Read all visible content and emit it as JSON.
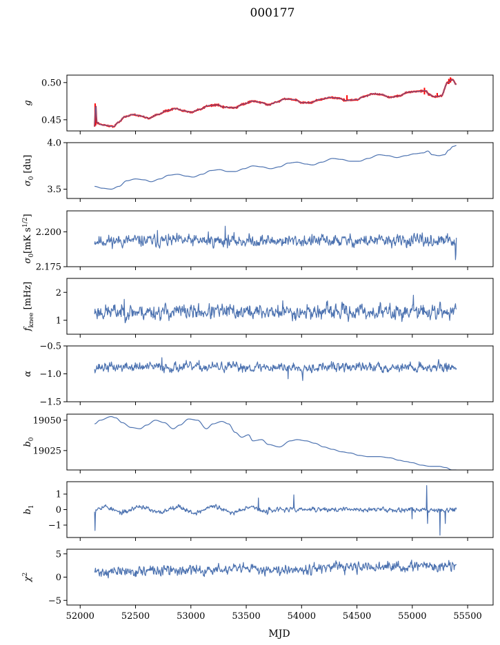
{
  "title": "000177",
  "chart_data": {
    "type": "line",
    "title": "000177",
    "xlabel": "MJD",
    "xlim": [
      51880,
      55730
    ],
    "xticks": [
      52000,
      52500,
      53000,
      53500,
      54000,
      54500,
      55000,
      55500
    ],
    "xtick_labels": [
      "52000",
      "52500",
      "53000",
      "53500",
      "54000",
      "54500",
      "55000",
      "55500"
    ],
    "x_range": [
      52130,
      55400
    ],
    "panels": [
      {
        "key": "g",
        "ylabel": "g",
        "ylim": [
          0.435,
          0.51
        ],
        "yticks": [
          0.45,
          0.5
        ],
        "ytick_labels": [
          "0.45",
          "0.50"
        ],
        "series": [
          {
            "color": "#ff0000",
            "style": "raw"
          },
          {
            "color": "#4c72b0",
            "style": "smooth"
          }
        ],
        "points": [
          [
            52130,
            0.441
          ],
          [
            52140,
            0.47
          ],
          [
            52150,
            0.446
          ],
          [
            52200,
            0.443
          ],
          [
            52300,
            0.441
          ],
          [
            52350,
            0.447
          ],
          [
            52400,
            0.454
          ],
          [
            52480,
            0.457
          ],
          [
            52550,
            0.455
          ],
          [
            52620,
            0.452
          ],
          [
            52700,
            0.457
          ],
          [
            52780,
            0.462
          ],
          [
            52860,
            0.465
          ],
          [
            52940,
            0.462
          ],
          [
            53000,
            0.46
          ],
          [
            53080,
            0.464
          ],
          [
            53160,
            0.469
          ],
          [
            53240,
            0.47
          ],
          [
            53300,
            0.467
          ],
          [
            53400,
            0.466
          ],
          [
            53470,
            0.471
          ],
          [
            53560,
            0.475
          ],
          [
            53640,
            0.473
          ],
          [
            53700,
            0.47
          ],
          [
            53780,
            0.474
          ],
          [
            53850,
            0.478
          ],
          [
            53940,
            0.477
          ],
          [
            54000,
            0.473
          ],
          [
            54080,
            0.473
          ],
          [
            54160,
            0.477
          ],
          [
            54260,
            0.48
          ],
          [
            54330,
            0.479
          ],
          [
            54400,
            0.476
          ],
          [
            54500,
            0.477
          ],
          [
            54560,
            0.481
          ],
          [
            54650,
            0.485
          ],
          [
            54720,
            0.484
          ],
          [
            54800,
            0.48
          ],
          [
            54880,
            0.482
          ],
          [
            54960,
            0.487
          ],
          [
            55040,
            0.488
          ],
          [
            55120,
            0.489
          ],
          [
            55150,
            0.484
          ],
          [
            55200,
            0.481
          ],
          [
            55260,
            0.482
          ],
          [
            55320,
            0.5
          ],
          [
            55360,
            0.504
          ],
          [
            55400,
            0.497
          ]
        ],
        "red_spikes": [
          [
            52135,
            0.445,
            0.472
          ],
          [
            52138,
            0.442,
            0.468
          ],
          [
            52141,
            0.443,
            0.465
          ],
          [
            54410,
            0.476,
            0.483
          ],
          [
            55110,
            0.484,
            0.493
          ],
          [
            55225,
            0.48,
            0.486
          ],
          [
            55330,
            0.498,
            0.505
          ],
          [
            55345,
            0.5,
            0.507
          ]
        ]
      },
      {
        "key": "sigma0",
        "ylabel": "σ0 [du]",
        "ylim": [
          3.4,
          4.0
        ],
        "yticks": [
          3.5,
          4.0
        ],
        "ytick_labels": [
          "3.5",
          "4.0"
        ],
        "series": [
          {
            "color": "#4c72b0"
          }
        ],
        "points": [
          [
            52130,
            3.53
          ],
          [
            52200,
            3.51
          ],
          [
            52280,
            3.5
          ],
          [
            52350,
            3.53
          ],
          [
            52420,
            3.59
          ],
          [
            52500,
            3.61
          ],
          [
            52580,
            3.6
          ],
          [
            52640,
            3.58
          ],
          [
            52720,
            3.61
          ],
          [
            52800,
            3.65
          ],
          [
            52880,
            3.66
          ],
          [
            52960,
            3.64
          ],
          [
            53020,
            3.63
          ],
          [
            53100,
            3.66
          ],
          [
            53180,
            3.7
          ],
          [
            53260,
            3.71
          ],
          [
            53330,
            3.69
          ],
          [
            53400,
            3.69
          ],
          [
            53480,
            3.72
          ],
          [
            53560,
            3.75
          ],
          [
            53640,
            3.74
          ],
          [
            53720,
            3.72
          ],
          [
            53800,
            3.74
          ],
          [
            53880,
            3.78
          ],
          [
            53960,
            3.79
          ],
          [
            54040,
            3.77
          ],
          [
            54100,
            3.76
          ],
          [
            54180,
            3.79
          ],
          [
            54280,
            3.83
          ],
          [
            54360,
            3.82
          ],
          [
            54440,
            3.8
          ],
          [
            54520,
            3.8
          ],
          [
            54600,
            3.83
          ],
          [
            54700,
            3.87
          ],
          [
            54780,
            3.86
          ],
          [
            54860,
            3.84
          ],
          [
            54940,
            3.86
          ],
          [
            55020,
            3.88
          ],
          [
            55100,
            3.89
          ],
          [
            55140,
            3.91
          ],
          [
            55180,
            3.87
          ],
          [
            55240,
            3.86
          ],
          [
            55290,
            3.87
          ],
          [
            55330,
            3.92
          ],
          [
            55370,
            3.96
          ],
          [
            55400,
            3.97
          ]
        ]
      },
      {
        "key": "sigma0_mks",
        "ylabel": "σ0[mK s1/2]",
        "ylim": [
          2.175,
          2.215
        ],
        "yticks": [
          2.175,
          2.2
        ],
        "ytick_labels": [
          "2.175",
          "2.200"
        ],
        "series": [
          {
            "color": "#4c72b0"
          }
        ],
        "noise": {
          "base": 2.1935,
          "amp": 0.0035,
          "seed": 11
        },
        "spikes": [
          [
            53310,
            2.204
          ],
          [
            52700,
            2.201
          ],
          [
            53160,
            2.2
          ],
          [
            55390,
            2.18
          ],
          [
            55395,
            2.184
          ]
        ]
      },
      {
        "key": "fknee",
        "ylabel": "fknee [mHz]",
        "ylim": [
          0.5,
          2.5
        ],
        "yticks": [
          1,
          2
        ],
        "ytick_labels": [
          "1",
          "2"
        ],
        "series": [
          {
            "color": "#4c72b0"
          }
        ],
        "noise": {
          "base": 1.3,
          "amp": 0.22,
          "seed": 23
        },
        "spikes": [
          [
            55010,
            1.9
          ],
          [
            52400,
            1.75
          ],
          [
            53830,
            1.7
          ]
        ]
      },
      {
        "key": "alpha",
        "ylabel": "α",
        "ylim": [
          -1.5,
          -0.5
        ],
        "yticks": [
          -1.5,
          -1.0,
          -0.5
        ],
        "ytick_labels": [
          "−1.5",
          "−1.0",
          "−0.5"
        ],
        "series": [
          {
            "color": "#4c72b0"
          }
        ],
        "noise": {
          "base": -0.88,
          "amp": 0.07,
          "seed": 37
        },
        "spikes": [
          [
            52740,
            -0.71
          ],
          [
            53880,
            -1.09
          ],
          [
            54010,
            -1.12
          ]
        ]
      },
      {
        "key": "b0",
        "ylabel": "b0",
        "ylim": [
          19009,
          19055
        ],
        "yticks": [
          19025,
          19050
        ],
        "ytick_labels": [
          "19025",
          "19050"
        ],
        "series": [
          {
            "color": "#4c72b0"
          }
        ],
        "points": [
          [
            52130,
            19047
          ],
          [
            52180,
            19050
          ],
          [
            52280,
            19053
          ],
          [
            52320,
            19052
          ],
          [
            52380,
            19048
          ],
          [
            52460,
            19044
          ],
          [
            52540,
            19043
          ],
          [
            52600,
            19046
          ],
          [
            52680,
            19050
          ],
          [
            52760,
            19048
          ],
          [
            52840,
            19043
          ],
          [
            52900,
            19046
          ],
          [
            52980,
            19051
          ],
          [
            53060,
            19050
          ],
          [
            53140,
            19043
          ],
          [
            53200,
            19047
          ],
          [
            53280,
            19049
          ],
          [
            53340,
            19047
          ],
          [
            53400,
            19040
          ],
          [
            53460,
            19036
          ],
          [
            53520,
            19038
          ],
          [
            53560,
            19033
          ],
          [
            53640,
            19034
          ],
          [
            53700,
            19030
          ],
          [
            53800,
            19028
          ],
          [
            53900,
            19033
          ],
          [
            53960,
            19034
          ],
          [
            54040,
            19033
          ],
          [
            54120,
            19031
          ],
          [
            54200,
            19028
          ],
          [
            54280,
            19026
          ],
          [
            54360,
            19024
          ],
          [
            54440,
            19023
          ],
          [
            54520,
            19021
          ],
          [
            54600,
            19020
          ],
          [
            54700,
            19020
          ],
          [
            54800,
            19019
          ],
          [
            54880,
            19017
          ],
          [
            54940,
            19016
          ],
          [
            55000,
            19015
          ],
          [
            55080,
            19013
          ],
          [
            55160,
            19012
          ],
          [
            55240,
            19012
          ],
          [
            55300,
            19011
          ],
          [
            55360,
            19009
          ],
          [
            55400,
            19009
          ]
        ]
      },
      {
        "key": "b1",
        "ylabel": "b1",
        "ylim": [
          -1.8,
          1.8
        ],
        "yticks": [
          -1,
          0,
          1
        ],
        "ytick_labels": [
          "−1",
          "0",
          "1"
        ],
        "series": [
          {
            "color": "#4c72b0"
          }
        ],
        "noise": {
          "base": 0.0,
          "amp": 0.12,
          "seed": 53
        },
        "wave": {
          "amp": 0.2,
          "period": 330,
          "until": 53700
        },
        "spikes": [
          [
            52135,
            -1.35
          ],
          [
            52140,
            -0.3
          ],
          [
            53610,
            0.75
          ],
          [
            53930,
            0.95
          ],
          [
            55130,
            1.55
          ],
          [
            55140,
            -0.9
          ],
          [
            55250,
            -1.65
          ],
          [
            55300,
            -0.9
          ],
          [
            55000,
            -0.6
          ]
        ]
      },
      {
        "key": "chi2",
        "ylabel": "χ2",
        "ylim": [
          -6,
          6
        ],
        "yticks": [
          -5,
          0,
          5
        ],
        "ytick_labels": [
          "−5",
          "0",
          "5"
        ],
        "series": [
          {
            "color": "#4c72b0"
          }
        ],
        "noise": {
          "base": 1.6,
          "amp": 0.9,
          "seed": 71
        },
        "trend": {
          "start": 1.1,
          "end": 2.4
        }
      }
    ]
  }
}
